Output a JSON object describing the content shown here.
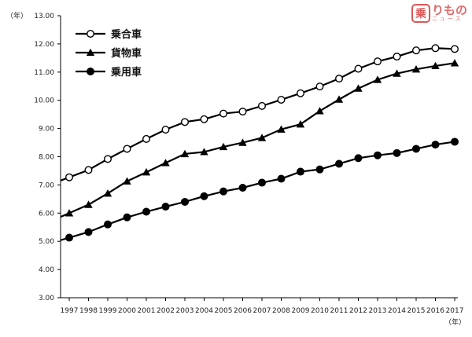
{
  "logo": {
    "mark": "乗",
    "main": "りもの",
    "sub": "ニュース"
  },
  "chart_data": {
    "type": "line",
    "title": "",
    "xlabel": "（年）",
    "ylabel": "（年）",
    "ylim": [
      3.0,
      13.0
    ],
    "yticks": [
      "3.00",
      "4.00",
      "5.00",
      "6.00",
      "7.00",
      "8.00",
      "9.00",
      "10.00",
      "11.00",
      "12.00",
      "13.00"
    ],
    "categories": [
      "1997",
      "1998",
      "1999",
      "2000",
      "2001",
      "2002",
      "2003",
      "2004",
      "2005",
      "2006",
      "2007",
      "2008",
      "2009",
      "2010",
      "2011",
      "2012",
      "2013",
      "2014",
      "2015",
      "2016",
      "2017"
    ],
    "grid": false,
    "legend_position": "top-left",
    "series": [
      {
        "name": "乗合車",
        "marker": "open-circle",
        "color": "#000000",
        "values": [
          7.27,
          7.53,
          7.92,
          8.28,
          8.63,
          8.96,
          9.23,
          9.33,
          9.53,
          9.6,
          9.8,
          10.02,
          10.25,
          10.49,
          10.77,
          11.12,
          11.38,
          11.55,
          11.77,
          11.85,
          11.82
        ]
      },
      {
        "name": "貨物車",
        "marker": "filled-triangle",
        "color": "#000000",
        "values": [
          6.0,
          6.3,
          6.7,
          7.13,
          7.45,
          7.78,
          8.1,
          8.17,
          8.35,
          8.5,
          8.67,
          8.97,
          9.15,
          9.62,
          10.03,
          10.42,
          10.73,
          10.95,
          11.1,
          11.22,
          11.32
        ]
      },
      {
        "name": "乗用車",
        "marker": "filled-circle",
        "color": "#000000",
        "values": [
          5.13,
          5.33,
          5.6,
          5.85,
          6.05,
          6.23,
          6.4,
          6.6,
          6.77,
          6.9,
          7.08,
          7.22,
          7.47,
          7.55,
          7.75,
          7.95,
          8.05,
          8.13,
          8.28,
          8.43,
          8.53
        ]
      }
    ]
  }
}
